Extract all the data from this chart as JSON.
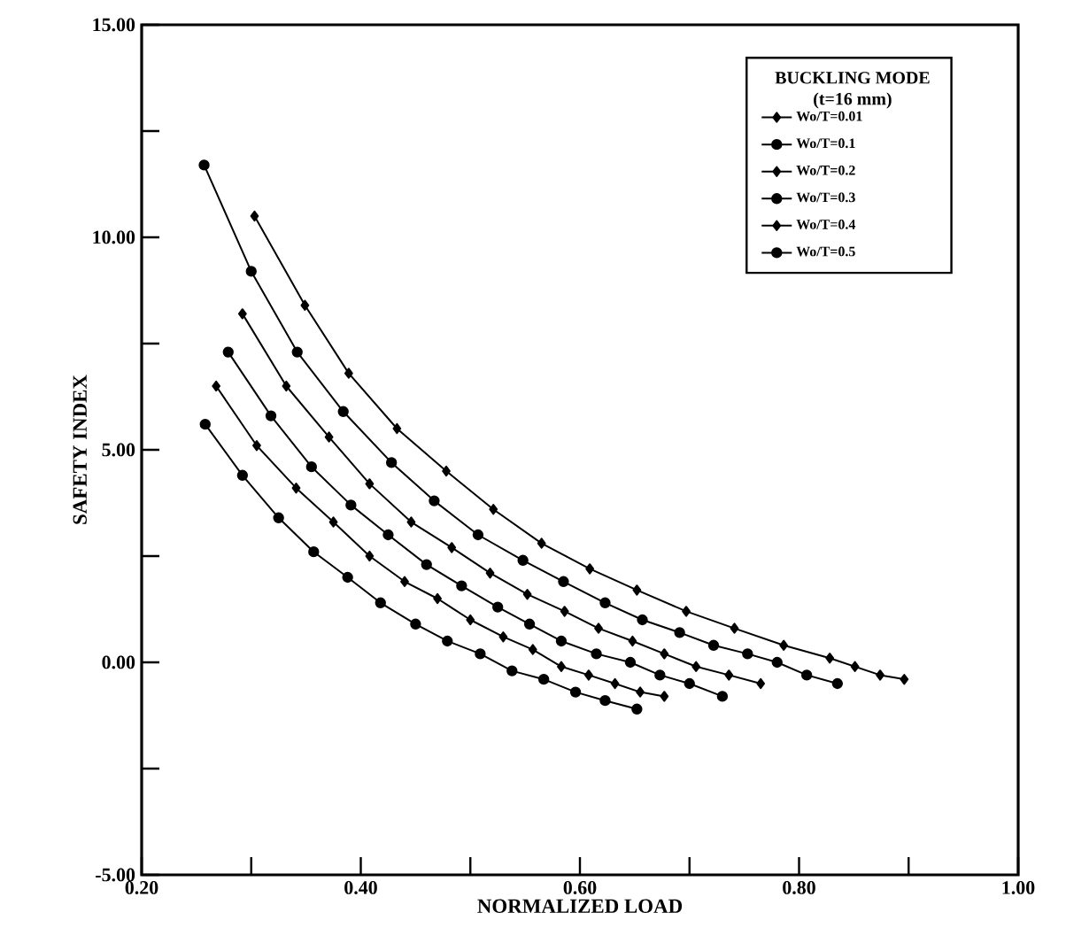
{
  "chart_data": {
    "type": "line",
    "xlabel": "NORMALIZED LOAD",
    "ylabel": "SAFETY INDEX",
    "legend_title": "BUCKLING MODE (t=16 mm)",
    "xlim": [
      0.2,
      1.0
    ],
    "ylim": [
      -5,
      15
    ],
    "xticks": [
      {
        "value": 0.2,
        "label": "0.20"
      },
      {
        "value": 0.3,
        "label": null
      },
      {
        "value": 0.4,
        "label": "0.40"
      },
      {
        "value": 0.5,
        "label": null
      },
      {
        "value": 0.6,
        "label": "0.60"
      },
      {
        "value": 0.7,
        "label": null
      },
      {
        "value": 0.8,
        "label": "0.80"
      },
      {
        "value": 0.9,
        "label": null
      },
      {
        "value": 1.0,
        "label": "1.00"
      }
    ],
    "yticks": [
      {
        "value": -5,
        "label": "-5.00"
      },
      {
        "value": -2.5,
        "label": null
      },
      {
        "value": 0,
        "label": "0.00"
      },
      {
        "value": 2.5,
        "label": null
      },
      {
        "value": 5,
        "label": "5.00"
      },
      {
        "value": 7.5,
        "label": null
      },
      {
        "value": 10,
        "label": "10.00"
      },
      {
        "value": 12.5,
        "label": null
      },
      {
        "value": 15,
        "label": "15.00"
      }
    ],
    "legend": "top right",
    "grid": false,
    "series": [
      {
        "name": "Wo/T=0.01",
        "color": "#000000",
        "marker": "diamond",
        "x": [
          0.303,
          0.349,
          0.389,
          0.433,
          0.478,
          0.521,
          0.565,
          0.609,
          0.652,
          0.697,
          0.741,
          0.786,
          0.828,
          0.851,
          0.874,
          0.896
        ],
        "values": [
          10.5,
          8.4,
          6.8,
          5.5,
          4.5,
          3.6,
          2.8,
          2.2,
          1.7,
          1.2,
          0.8,
          0.4,
          0.1,
          -0.1,
          -0.3,
          -0.4
        ]
      },
      {
        "name": "Wo/T=0.1",
        "color": "#000000",
        "marker": "circle",
        "x": [
          0.257,
          0.3,
          0.342,
          0.384,
          0.428,
          0.467,
          0.507,
          0.548,
          0.585,
          0.623,
          0.657,
          0.691,
          0.722,
          0.753,
          0.78,
          0.807,
          0.835
        ],
        "values": [
          11.7,
          9.2,
          7.3,
          5.9,
          4.7,
          3.8,
          3.0,
          2.4,
          1.9,
          1.4,
          1.0,
          0.7,
          0.4,
          0.2,
          0.0,
          -0.3,
          -0.5
        ]
      },
      {
        "name": "Wo/T=0.2",
        "color": "#000000",
        "marker": "diamond",
        "x": [
          0.292,
          0.332,
          0.371,
          0.408,
          0.446,
          0.483,
          0.518,
          0.552,
          0.586,
          0.617,
          0.648,
          0.677,
          0.706,
          0.736,
          0.765
        ],
        "values": [
          8.2,
          6.5,
          5.3,
          4.2,
          3.3,
          2.7,
          2.1,
          1.6,
          1.2,
          0.8,
          0.5,
          0.2,
          -0.1,
          -0.3,
          -0.5
        ]
      },
      {
        "name": "Wo/T=0.3",
        "color": "#000000",
        "marker": "circle",
        "x": [
          0.279,
          0.318,
          0.355,
          0.391,
          0.425,
          0.46,
          0.492,
          0.525,
          0.554,
          0.583,
          0.615,
          0.646,
          0.673,
          0.7,
          0.73
        ],
        "values": [
          7.3,
          5.8,
          4.6,
          3.7,
          3.0,
          2.3,
          1.8,
          1.3,
          0.9,
          0.5,
          0.2,
          0.0,
          -0.3,
          -0.5,
          -0.8
        ]
      },
      {
        "name": "Wo/T=0.4",
        "color": "#000000",
        "marker": "diamond",
        "x": [
          0.268,
          0.305,
          0.341,
          0.375,
          0.408,
          0.44,
          0.47,
          0.5,
          0.53,
          0.557,
          0.583,
          0.608,
          0.632,
          0.655,
          0.677
        ],
        "values": [
          6.5,
          5.1,
          4.1,
          3.3,
          2.5,
          1.9,
          1.5,
          1.0,
          0.6,
          0.3,
          -0.1,
          -0.3,
          -0.5,
          -0.7,
          -0.8
        ]
      },
      {
        "name": "Wo/T=0.5",
        "color": "#000000",
        "marker": "circle",
        "x": [
          0.258,
          0.292,
          0.325,
          0.357,
          0.388,
          0.418,
          0.45,
          0.479,
          0.509,
          0.538,
          0.567,
          0.596,
          0.623,
          0.652
        ],
        "values": [
          5.6,
          4.4,
          3.4,
          2.6,
          2.0,
          1.4,
          0.9,
          0.5,
          0.2,
          -0.2,
          -0.4,
          -0.7,
          -0.9,
          -1.1
        ]
      }
    ]
  }
}
